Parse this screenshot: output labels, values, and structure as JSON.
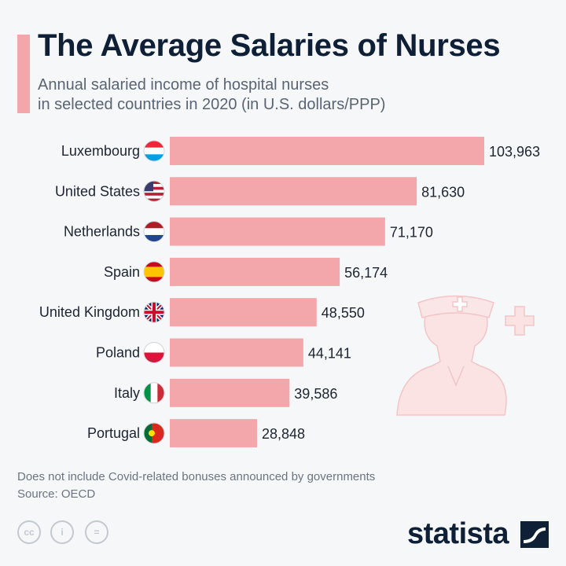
{
  "chart_data": {
    "type": "bar",
    "orientation": "horizontal",
    "title": "The Average Salaries of Nurses",
    "subtitle": [
      "Annual salaried income of hospital nurses",
      "in selected countries in 2020 (in U.S. dollars/PPP)"
    ],
    "categories": [
      "Luxembourg",
      "United States",
      "Netherlands",
      "Spain",
      "United Kingdom",
      "Poland",
      "Italy",
      "Portugal"
    ],
    "values": [
      103963,
      81630,
      71170,
      56174,
      48550,
      44141,
      39586,
      28848
    ],
    "value_labels": [
      "103,963",
      "81,630",
      "71,170",
      "56,174",
      "48,550",
      "44,141",
      "39,586",
      "28,848"
    ],
    "flags": [
      "luxembourg-flag",
      "usa-flag",
      "netherlands-flag",
      "spain-flag",
      "uk-flag",
      "poland-flag",
      "italy-flag",
      "portugal-flag"
    ],
    "xlim": [
      0,
      104000
    ],
    "grid": false,
    "bar_color": "#f4a7aa",
    "xlabel": "",
    "ylabel": ""
  },
  "footer": {
    "note": "Does not include Covid-related bonuses announced by governments",
    "source": "Source: OECD",
    "brand": "statista",
    "license_icons": [
      "cc-icon",
      "attribution-icon",
      "no-derivatives-icon"
    ]
  },
  "colors": {
    "title": "#0f1f36",
    "accent": "#f4a7aa",
    "background": "#f5f7f9"
  }
}
